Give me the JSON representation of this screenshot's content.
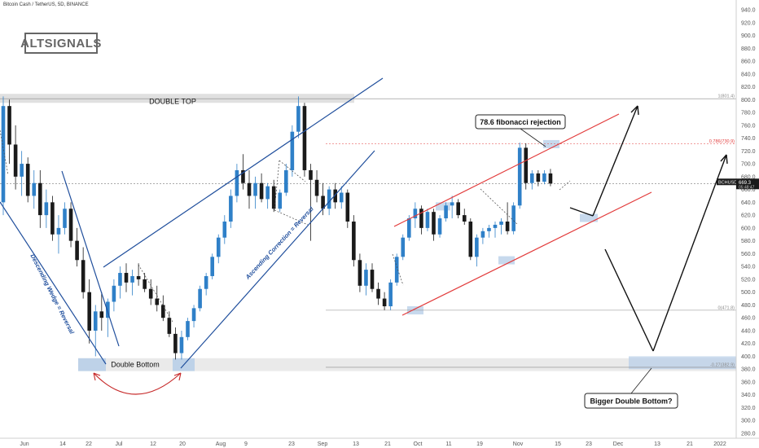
{
  "header": {
    "symbol_line": "Bitcoin Cash / TetherUS, 5D, BINANCE"
  },
  "logo": {
    "text": "ALTSIGNALS"
  },
  "price_tag": {
    "symbol": "BCHUSDT",
    "value": "669.3",
    "countdown": "05:48:47"
  },
  "colors": {
    "up": "#2f80c8",
    "down": "#1a1a1a",
    "trend": "#1f4e9c",
    "channel": "#e23b3b",
    "zone": "#d8d8d8",
    "zone_blue": "#b9cfe8",
    "arrow": "#111111",
    "curve": "#c62828"
  },
  "annotations": {
    "double_top": "DOUBLE TOP",
    "double_bottom": "Double Bottom",
    "fib_rejection": "78.6 fibonacci rejection",
    "bigger_double_bottom": "Bigger Double Bottom?",
    "descending_wedge": "Descending Wedge = Reversal",
    "ascending_correction": "Ascending Correction = Reversal"
  },
  "fib_levels": [
    {
      "label": "1(801.4)",
      "value": 801.4,
      "color": "#888888"
    },
    {
      "label": "0.786(730.9)",
      "value": 730.9,
      "color": "#e23b3b"
    },
    {
      "label": "0(471.8)",
      "value": 471.8,
      "color": "#888888"
    },
    {
      "label": "-0.27(382.9)",
      "value": 382.9,
      "color": "#888888"
    }
  ],
  "chart_data": {
    "type": "candlestick",
    "ylim": [
      270,
      950
    ],
    "y_ticks": [
      940.0,
      920.0,
      900.0,
      880.0,
      860.0,
      840.0,
      820.0,
      800.0,
      780.0,
      760.0,
      740.0,
      720.0,
      700.0,
      680.0,
      660.0,
      640.0,
      620.0,
      600.0,
      580.0,
      560.0,
      540.0,
      520.0,
      500.0,
      480.0,
      460.0,
      440.0,
      420.0,
      400.0,
      380.0,
      360.0,
      340.0,
      320.0,
      300.0,
      280.0
    ],
    "x_ticks": [
      "Jun",
      "14",
      "22",
      "Jul",
      "12",
      "20",
      "Aug",
      "9",
      "23",
      "Sep",
      "13",
      "21",
      "Oct",
      "11",
      "19",
      "Nov",
      "15",
      "23",
      "Dec",
      "13",
      "21",
      "2022"
    ],
    "current_price": 669.3,
    "candles": [
      {
        "o": 640,
        "h": 805,
        "l": 620,
        "c": 790
      },
      {
        "o": 790,
        "h": 800,
        "l": 700,
        "c": 730
      },
      {
        "o": 730,
        "h": 760,
        "l": 660,
        "c": 680
      },
      {
        "o": 680,
        "h": 720,
        "l": 650,
        "c": 700
      },
      {
        "o": 700,
        "h": 710,
        "l": 640,
        "c": 650
      },
      {
        "o": 650,
        "h": 690,
        "l": 630,
        "c": 670
      },
      {
        "o": 670,
        "h": 690,
        "l": 600,
        "c": 620
      },
      {
        "o": 620,
        "h": 660,
        "l": 600,
        "c": 640
      },
      {
        "o": 640,
        "h": 650,
        "l": 580,
        "c": 590
      },
      {
        "o": 590,
        "h": 620,
        "l": 560,
        "c": 600
      },
      {
        "o": 600,
        "h": 640,
        "l": 590,
        "c": 630
      },
      {
        "o": 630,
        "h": 640,
        "l": 570,
        "c": 580
      },
      {
        "o": 580,
        "h": 600,
        "l": 540,
        "c": 550
      },
      {
        "o": 550,
        "h": 570,
        "l": 490,
        "c": 500
      },
      {
        "o": 500,
        "h": 520,
        "l": 420,
        "c": 440
      },
      {
        "o": 440,
        "h": 480,
        "l": 400,
        "c": 470
      },
      {
        "o": 470,
        "h": 500,
        "l": 440,
        "c": 460
      },
      {
        "o": 460,
        "h": 490,
        "l": 430,
        "c": 485
      },
      {
        "o": 485,
        "h": 520,
        "l": 470,
        "c": 510
      },
      {
        "o": 510,
        "h": 540,
        "l": 490,
        "c": 530
      },
      {
        "o": 530,
        "h": 545,
        "l": 500,
        "c": 515
      },
      {
        "o": 515,
        "h": 535,
        "l": 495,
        "c": 525
      },
      {
        "o": 525,
        "h": 545,
        "l": 510,
        "c": 520
      },
      {
        "o": 520,
        "h": 530,
        "l": 500,
        "c": 505
      },
      {
        "o": 505,
        "h": 520,
        "l": 480,
        "c": 490
      },
      {
        "o": 490,
        "h": 510,
        "l": 470,
        "c": 480
      },
      {
        "o": 480,
        "h": 495,
        "l": 455,
        "c": 460
      },
      {
        "o": 460,
        "h": 470,
        "l": 430,
        "c": 435
      },
      {
        "o": 435,
        "h": 445,
        "l": 395,
        "c": 405
      },
      {
        "o": 405,
        "h": 440,
        "l": 395,
        "c": 430
      },
      {
        "o": 430,
        "h": 460,
        "l": 425,
        "c": 455
      },
      {
        "o": 455,
        "h": 480,
        "l": 445,
        "c": 475
      },
      {
        "o": 475,
        "h": 510,
        "l": 470,
        "c": 505
      },
      {
        "o": 505,
        "h": 530,
        "l": 495,
        "c": 525
      },
      {
        "o": 525,
        "h": 560,
        "l": 520,
        "c": 555
      },
      {
        "o": 555,
        "h": 590,
        "l": 545,
        "c": 585
      },
      {
        "o": 585,
        "h": 620,
        "l": 575,
        "c": 610
      },
      {
        "o": 610,
        "h": 660,
        "l": 600,
        "c": 650
      },
      {
        "o": 650,
        "h": 700,
        "l": 640,
        "c": 690
      },
      {
        "o": 690,
        "h": 715,
        "l": 660,
        "c": 670
      },
      {
        "o": 670,
        "h": 690,
        "l": 630,
        "c": 650
      },
      {
        "o": 650,
        "h": 680,
        "l": 630,
        "c": 670
      },
      {
        "o": 670,
        "h": 685,
        "l": 640,
        "c": 645
      },
      {
        "o": 645,
        "h": 670,
        "l": 630,
        "c": 665
      },
      {
        "o": 665,
        "h": 675,
        "l": 625,
        "c": 630
      },
      {
        "o": 630,
        "h": 660,
        "l": 625,
        "c": 655
      },
      {
        "o": 655,
        "h": 700,
        "l": 650,
        "c": 690
      },
      {
        "o": 690,
        "h": 760,
        "l": 680,
        "c": 750
      },
      {
        "o": 750,
        "h": 805,
        "l": 740,
        "c": 790
      },
      {
        "o": 790,
        "h": 795,
        "l": 680,
        "c": 690
      },
      {
        "o": 690,
        "h": 700,
        "l": 580,
        "c": 675
      },
      {
        "o": 675,
        "h": 690,
        "l": 640,
        "c": 650
      },
      {
        "o": 650,
        "h": 670,
        "l": 620,
        "c": 630
      },
      {
        "o": 630,
        "h": 665,
        "l": 620,
        "c": 660
      },
      {
        "o": 660,
        "h": 670,
        "l": 630,
        "c": 640
      },
      {
        "o": 640,
        "h": 665,
        "l": 630,
        "c": 655
      },
      {
        "o": 655,
        "h": 660,
        "l": 600,
        "c": 610
      },
      {
        "o": 610,
        "h": 620,
        "l": 540,
        "c": 550
      },
      {
        "o": 550,
        "h": 560,
        "l": 500,
        "c": 510
      },
      {
        "o": 510,
        "h": 545,
        "l": 495,
        "c": 535
      },
      {
        "o": 535,
        "h": 545,
        "l": 500,
        "c": 505
      },
      {
        "o": 505,
        "h": 515,
        "l": 480,
        "c": 490
      },
      {
        "o": 490,
        "h": 500,
        "l": 472,
        "c": 478
      },
      {
        "o": 478,
        "h": 520,
        "l": 472,
        "c": 515
      },
      {
        "o": 515,
        "h": 560,
        "l": 510,
        "c": 555
      },
      {
        "o": 555,
        "h": 590,
        "l": 550,
        "c": 585
      },
      {
        "o": 585,
        "h": 620,
        "l": 580,
        "c": 615
      },
      {
        "o": 615,
        "h": 640,
        "l": 600,
        "c": 630
      },
      {
        "o": 630,
        "h": 635,
        "l": 590,
        "c": 600
      },
      {
        "o": 600,
        "h": 630,
        "l": 595,
        "c": 625
      },
      {
        "o": 625,
        "h": 630,
        "l": 580,
        "c": 590
      },
      {
        "o": 590,
        "h": 620,
        "l": 585,
        "c": 615
      },
      {
        "o": 615,
        "h": 640,
        "l": 610,
        "c": 635
      },
      {
        "o": 635,
        "h": 650,
        "l": 615,
        "c": 640
      },
      {
        "o": 640,
        "h": 645,
        "l": 615,
        "c": 620
      },
      {
        "o": 620,
        "h": 630,
        "l": 605,
        "c": 610
      },
      {
        "o": 610,
        "h": 615,
        "l": 550,
        "c": 555
      },
      {
        "o": 555,
        "h": 590,
        "l": 540,
        "c": 585
      },
      {
        "o": 585,
        "h": 600,
        "l": 575,
        "c": 595
      },
      {
        "o": 595,
        "h": 605,
        "l": 585,
        "c": 600
      },
      {
        "o": 600,
        "h": 610,
        "l": 585,
        "c": 605
      },
      {
        "o": 605,
        "h": 615,
        "l": 590,
        "c": 610
      },
      {
        "o": 610,
        "h": 640,
        "l": 590,
        "c": 595
      },
      {
        "o": 595,
        "h": 640,
        "l": 590,
        "c": 635
      },
      {
        "o": 635,
        "h": 733,
        "l": 630,
        "c": 725
      },
      {
        "o": 725,
        "h": 732,
        "l": 660,
        "c": 670
      },
      {
        "o": 670,
        "h": 690,
        "l": 660,
        "c": 685
      },
      {
        "o": 685,
        "h": 690,
        "l": 665,
        "c": 672
      },
      {
        "o": 672,
        "h": 690,
        "l": 668,
        "c": 685
      },
      {
        "o": 685,
        "h": 692,
        "l": 665,
        "c": 669.3
      }
    ]
  }
}
